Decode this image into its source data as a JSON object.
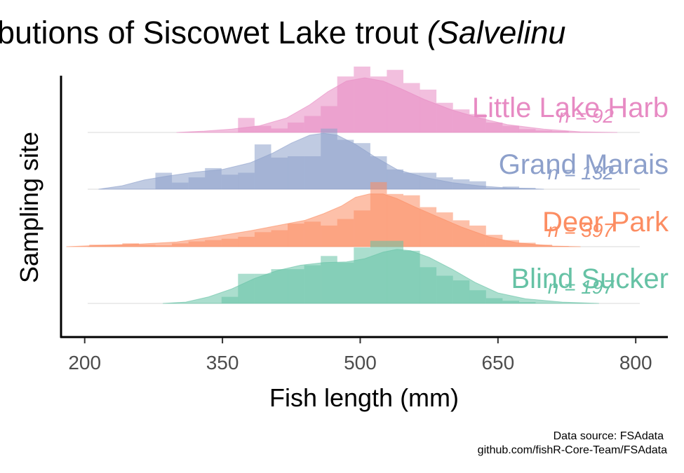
{
  "chart_data": {
    "type": "ridgeline",
    "title": "bution­s of Siscowet Lake trout",
    "title_parts": {
      "plain": "butions of Siscowet Lake trout ",
      "italic": "(Salvelinu"
    },
    "xlabel": "Fish length (mm)",
    "ylabel": "Sampling site",
    "xlim": [
      175,
      835
    ],
    "x_ticks": [
      200,
      350,
      500,
      650,
      800
    ],
    "caption": [
      "Data source: FSAdata",
      "github.com/fishR-Core-Team/FSAdata"
    ],
    "bin_width": 18,
    "series": [
      {
        "name": "Blind Sucker",
        "n_label": "n = 197",
        "color": "#66c2a5",
        "hist_x0": 349,
        "hist": [
          0.1,
          0.45,
          0.45,
          0.52,
          0.52,
          0.58,
          0.72,
          0.62,
          0.85,
          0.95,
          0.95,
          0.8,
          0.55,
          0.42,
          0.35,
          0.2,
          0.08,
          0.04,
          0.02
        ],
        "density": [
          [
            285,
            0
          ],
          [
            310,
            0.02
          ],
          [
            335,
            0.1
          ],
          [
            360,
            0.22
          ],
          [
            385,
            0.38
          ],
          [
            410,
            0.5
          ],
          [
            435,
            0.58
          ],
          [
            460,
            0.62
          ],
          [
            485,
            0.63
          ],
          [
            505,
            0.68
          ],
          [
            525,
            0.78
          ],
          [
            540,
            0.82
          ],
          [
            555,
            0.8
          ],
          [
            575,
            0.7
          ],
          [
            600,
            0.52
          ],
          [
            625,
            0.32
          ],
          [
            650,
            0.16
          ],
          [
            680,
            0.07
          ],
          [
            720,
            0.02
          ],
          [
            760,
            0
          ]
        ]
      },
      {
        "name": "Deer Park",
        "n_label": "n = 397",
        "color": "#fc8d62",
        "hist_x0": 205,
        "hist": [
          0.03,
          0.03,
          0.05,
          0.03,
          0.02,
          0.05,
          0.08,
          0.1,
          0.12,
          0.15,
          0.22,
          0.25,
          0.35,
          0.38,
          0.32,
          0.42,
          0.55,
          0.98,
          0.8,
          0.78,
          0.6,
          0.52,
          0.4,
          0.32,
          0.18,
          0.1,
          0.06,
          0.03,
          0.01
        ],
        "density": [
          [
            180,
            0
          ],
          [
            220,
            0.02
          ],
          [
            260,
            0.04
          ],
          [
            300,
            0.07
          ],
          [
            340,
            0.15
          ],
          [
            380,
            0.24
          ],
          [
            410,
            0.32
          ],
          [
            440,
            0.4
          ],
          [
            460,
            0.5
          ],
          [
            480,
            0.62
          ],
          [
            495,
            0.75
          ],
          [
            510,
            0.8
          ],
          [
            525,
            0.8
          ],
          [
            540,
            0.73
          ],
          [
            560,
            0.6
          ],
          [
            585,
            0.45
          ],
          [
            610,
            0.3
          ],
          [
            640,
            0.15
          ],
          [
            670,
            0.06
          ],
          [
            710,
            0.01
          ],
          [
            740,
            0
          ]
        ]
      },
      {
        "name": "Grand Marais",
        "n_label": "n = 132",
        "color": "#8da0cb",
        "hist_x0": 277,
        "hist": [
          0.25,
          0.1,
          0.18,
          0.32,
          0.22,
          0.25,
          0.68,
          0.48,
          0.5,
          0.5,
          0.92,
          0.75,
          0.7,
          0.5,
          0.3,
          0.25,
          0.25,
          0.18,
          0.15,
          0.12,
          0.02,
          0.04,
          0.02
        ],
        "density": [
          [
            215,
            0
          ],
          [
            240,
            0.05
          ],
          [
            265,
            0.14
          ],
          [
            290,
            0.2
          ],
          [
            320,
            0.26
          ],
          [
            350,
            0.3
          ],
          [
            380,
            0.4
          ],
          [
            405,
            0.55
          ],
          [
            425,
            0.7
          ],
          [
            445,
            0.82
          ],
          [
            460,
            0.85
          ],
          [
            475,
            0.82
          ],
          [
            495,
            0.68
          ],
          [
            515,
            0.5
          ],
          [
            540,
            0.3
          ],
          [
            570,
            0.18
          ],
          [
            600,
            0.1
          ],
          [
            630,
            0.05
          ],
          [
            660,
            0.02
          ],
          [
            700,
            0
          ]
        ]
      },
      {
        "name": "Little Lake Harb",
        "n_label": "n = 92",
        "color": "#e78ac3",
        "hist_x0": 367,
        "hist": [
          0.22,
          0.1,
          0.06,
          0.15,
          0.25,
          0.4,
          0.85,
          1.0,
          0.85,
          0.95,
          0.75,
          0.65,
          0.45,
          0.35,
          0.28,
          0.15,
          0.1,
          0.05,
          0.03,
          0.02
        ],
        "density": [
          [
            300,
            0
          ],
          [
            330,
            0.02
          ],
          [
            360,
            0.05
          ],
          [
            390,
            0.1
          ],
          [
            420,
            0.22
          ],
          [
            445,
            0.42
          ],
          [
            465,
            0.62
          ],
          [
            485,
            0.78
          ],
          [
            505,
            0.83
          ],
          [
            525,
            0.78
          ],
          [
            545,
            0.66
          ],
          [
            570,
            0.5
          ],
          [
            600,
            0.34
          ],
          [
            630,
            0.22
          ],
          [
            660,
            0.12
          ],
          [
            700,
            0.05
          ],
          [
            740,
            0.01
          ],
          [
            780,
            0
          ]
        ]
      }
    ]
  }
}
